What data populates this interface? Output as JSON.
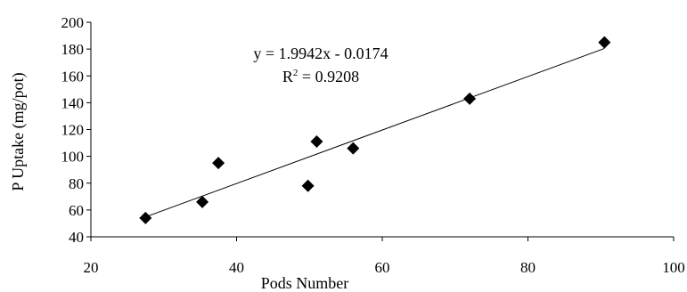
{
  "chart_data": {
    "type": "scatter",
    "title": "",
    "xlabel": "Pods Number",
    "ylabel": "P Uptake (mg/pot)",
    "xlim": [
      20,
      100
    ],
    "ylim": [
      40,
      200
    ],
    "x_ticks": [
      "20",
      "40",
      "60",
      "80",
      "100"
    ],
    "y_ticks": [
      "40",
      "60",
      "80",
      "100",
      "120",
      "140",
      "160",
      "180",
      "200"
    ],
    "grid": false,
    "legend": "none",
    "marker": "diamond",
    "marker_color": "#000000",
    "points": [
      {
        "x": 27.5,
        "y": 54
      },
      {
        "x": 35.3,
        "y": 66
      },
      {
        "x": 37.5,
        "y": 95
      },
      {
        "x": 49.8,
        "y": 78
      },
      {
        "x": 51.0,
        "y": 111
      },
      {
        "x": 56.0,
        "y": 106
      },
      {
        "x": 72.0,
        "y": 143
      },
      {
        "x": 90.5,
        "y": 185
      }
    ],
    "trendline": {
      "slope": 1.9942,
      "intercept": -0.0174,
      "x_range": [
        27.5,
        90.5
      ],
      "color": "#000000"
    },
    "annotations": {
      "equation": "y = 1.9942x - 0.0174",
      "r2_prefix": "R",
      "r2_superscript": "2",
      "r2_suffix": " = 0.9208"
    }
  }
}
